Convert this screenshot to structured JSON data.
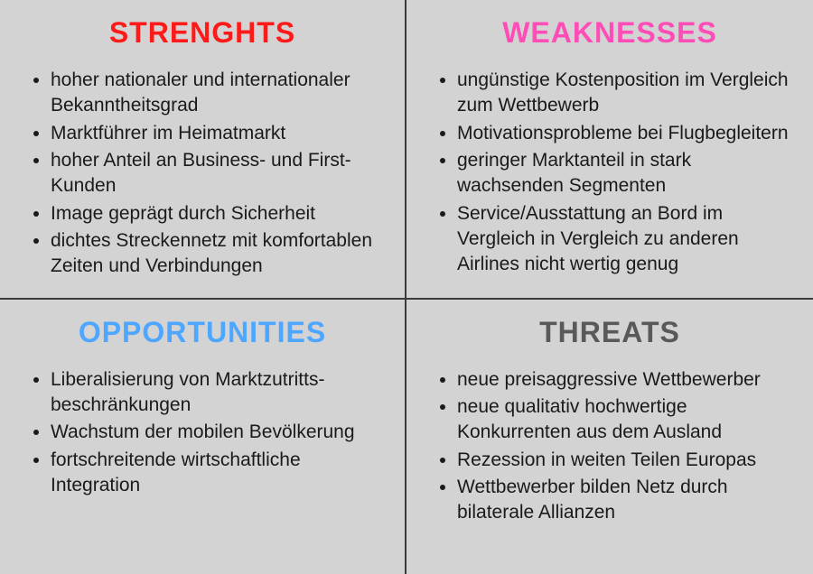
{
  "type": "swot-matrix",
  "background_color": "#d3d3d3",
  "border_color": "#3a3a3a",
  "border_width": 2,
  "heading_fontsize": 32,
  "heading_weight": 900,
  "body_fontsize": 21,
  "body_color": "#1a1a1a",
  "quadrants": {
    "strengths": {
      "title": "STRENGHTS",
      "title_color": "#ff1a1a",
      "items": [
        "hoher nationaler und internationaler Bekanntheitsgrad",
        "Marktführer im Heimatmarkt",
        "hoher Anteil an Business- und First-Kunden",
        "Image geprägt durch Sicherheit",
        "dichtes Streckennetz mit komfortablen Zeiten und Verbindungen"
      ]
    },
    "weaknesses": {
      "title": "WEAKNESSES",
      "title_color": "#ff4db8",
      "items": [
        "ungünstige Kostenposition im Vergleich zum Wettbewerb",
        "Motivationsprobleme bei Flugbegleitern",
        "geringer Marktanteil in stark wachsenden Segmenten",
        "Service/Ausstattung an Bord im Vergleich in Vergleich zu anderen Airlines nicht wertig genug"
      ]
    },
    "opportunities": {
      "title": "OPPORTUNITIES",
      "title_color": "#4da6ff",
      "items": [
        "Liberalisierung von Marktzutritts-beschränkungen",
        "Wachstum der mobilen Bevölkerung",
        "fortschreitende wirtschaftliche Integration"
      ]
    },
    "threats": {
      "title": "THREATS",
      "title_color": "#595959",
      "items": [
        "neue preisaggressive Wettbewerber",
        "neue qualitativ hochwertige Konkurrenten aus dem Ausland",
        "Rezession in weiten Teilen Europas",
        "Wettbewerber bilden Netz durch bilaterale Allianzen"
      ]
    }
  }
}
